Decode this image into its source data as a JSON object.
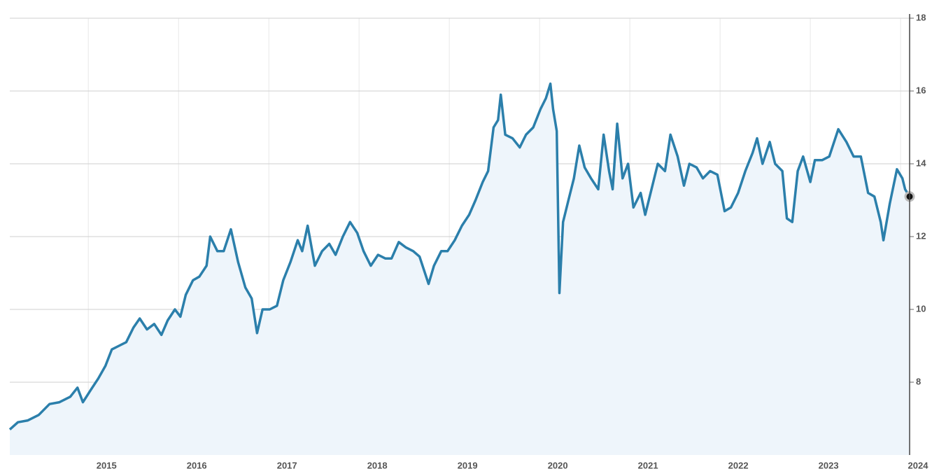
{
  "chart_data": {
    "type": "area",
    "series": [
      {
        "color": "#2b7fab",
        "fill": "#eef5fb",
        "x": [
          2014.13,
          2014.22,
          2014.33,
          2014.45,
          2014.57,
          2014.68,
          2014.8,
          2014.88,
          2014.94,
          2015.03,
          2015.11,
          2015.19,
          2015.26,
          2015.34,
          2015.42,
          2015.5,
          2015.57,
          2015.65,
          2015.73,
          2015.81,
          2015.88,
          2015.96,
          2016.02,
          2016.08,
          2016.16,
          2016.23,
          2016.31,
          2016.35,
          2016.43,
          2016.5,
          2016.58,
          2016.66,
          2016.74,
          2016.81,
          2016.87,
          2016.93,
          2017.01,
          2017.09,
          2017.16,
          2017.24,
          2017.32,
          2017.37,
          2017.43,
          2017.51,
          2017.59,
          2017.67,
          2017.74,
          2017.82,
          2017.9,
          2017.98,
          2018.05,
          2018.13,
          2018.21,
          2018.29,
          2018.36,
          2018.44,
          2018.52,
          2018.6,
          2018.67,
          2018.77,
          2018.83,
          2018.91,
          2018.98,
          2019.06,
          2019.14,
          2019.22,
          2019.29,
          2019.37,
          2019.43,
          2019.49,
          2019.54,
          2019.57,
          2019.62,
          2019.7,
          2019.78,
          2019.85,
          2019.93,
          2020.01,
          2020.07,
          2020.12,
          2020.15,
          2020.19,
          2020.22,
          2020.26,
          2020.32,
          2020.38,
          2020.44,
          2020.5,
          2020.57,
          2020.65,
          2020.71,
          2020.77,
          2020.81,
          2020.86,
          2020.92,
          2020.98,
          2021.04,
          2021.12,
          2021.17,
          2021.25,
          2021.31,
          2021.39,
          2021.45,
          2021.53,
          2021.6,
          2021.66,
          2021.74,
          2021.81,
          2021.89,
          2021.97,
          2022.05,
          2022.12,
          2022.2,
          2022.28,
          2022.36,
          2022.41,
          2022.47,
          2022.55,
          2022.61,
          2022.69,
          2022.74,
          2022.8,
          2022.86,
          2022.92,
          2023.0,
          2023.05,
          2023.13,
          2023.21,
          2023.31,
          2023.4,
          2023.48,
          2023.56,
          2023.64,
          2023.71,
          2023.78,
          2023.81,
          2023.88,
          2023.96,
          2024.02,
          2024.05,
          2024.1
        ],
        "values": [
          6.7,
          6.9,
          6.95,
          7.1,
          7.4,
          7.45,
          7.6,
          7.85,
          7.45,
          7.8,
          8.1,
          8.45,
          8.9,
          9.0,
          9.1,
          9.5,
          9.75,
          9.45,
          9.6,
          9.3,
          9.7,
          10.0,
          9.8,
          10.4,
          10.8,
          10.9,
          11.2,
          12.0,
          11.6,
          11.6,
          12.2,
          11.3,
          10.6,
          10.3,
          9.35,
          10.0,
          10.0,
          10.1,
          10.8,
          11.3,
          11.9,
          11.6,
          12.3,
          11.2,
          11.6,
          11.8,
          11.5,
          12.0,
          12.4,
          12.1,
          11.6,
          11.2,
          11.5,
          11.4,
          11.4,
          11.85,
          11.7,
          11.6,
          11.45,
          10.7,
          11.2,
          11.6,
          11.6,
          11.9,
          12.3,
          12.6,
          13.0,
          13.5,
          13.8,
          15.0,
          15.2,
          15.9,
          14.8,
          14.7,
          14.45,
          14.8,
          15.0,
          15.5,
          15.8,
          16.2,
          15.5,
          14.9,
          10.45,
          12.4,
          13.0,
          13.6,
          14.5,
          13.9,
          13.6,
          13.3,
          14.8,
          13.8,
          13.3,
          15.1,
          13.6,
          14.0,
          12.8,
          13.2,
          12.6,
          13.4,
          14.0,
          13.8,
          14.8,
          14.2,
          13.4,
          14.0,
          13.9,
          13.6,
          13.8,
          13.7,
          12.7,
          12.8,
          13.2,
          13.8,
          14.3,
          14.7,
          14.0,
          14.6,
          14.0,
          13.8,
          12.5,
          12.4,
          13.8,
          14.2,
          13.5,
          14.1,
          14.1,
          14.2,
          14.95,
          14.6,
          14.2,
          14.2,
          13.2,
          13.1,
          12.4,
          11.9,
          12.9,
          13.85,
          13.6,
          13.3,
          13.1
        ]
      }
    ],
    "xlim": [
      2014.13,
      2024.1
    ],
    "xticks": [
      2015,
      2016,
      2017,
      2018,
      2019,
      2020,
      2021,
      2022,
      2023,
      2024
    ],
    "ylim": [
      6,
      18
    ],
    "yticks": [
      8,
      10,
      12,
      14,
      16,
      18
    ],
    "grid": true
  }
}
